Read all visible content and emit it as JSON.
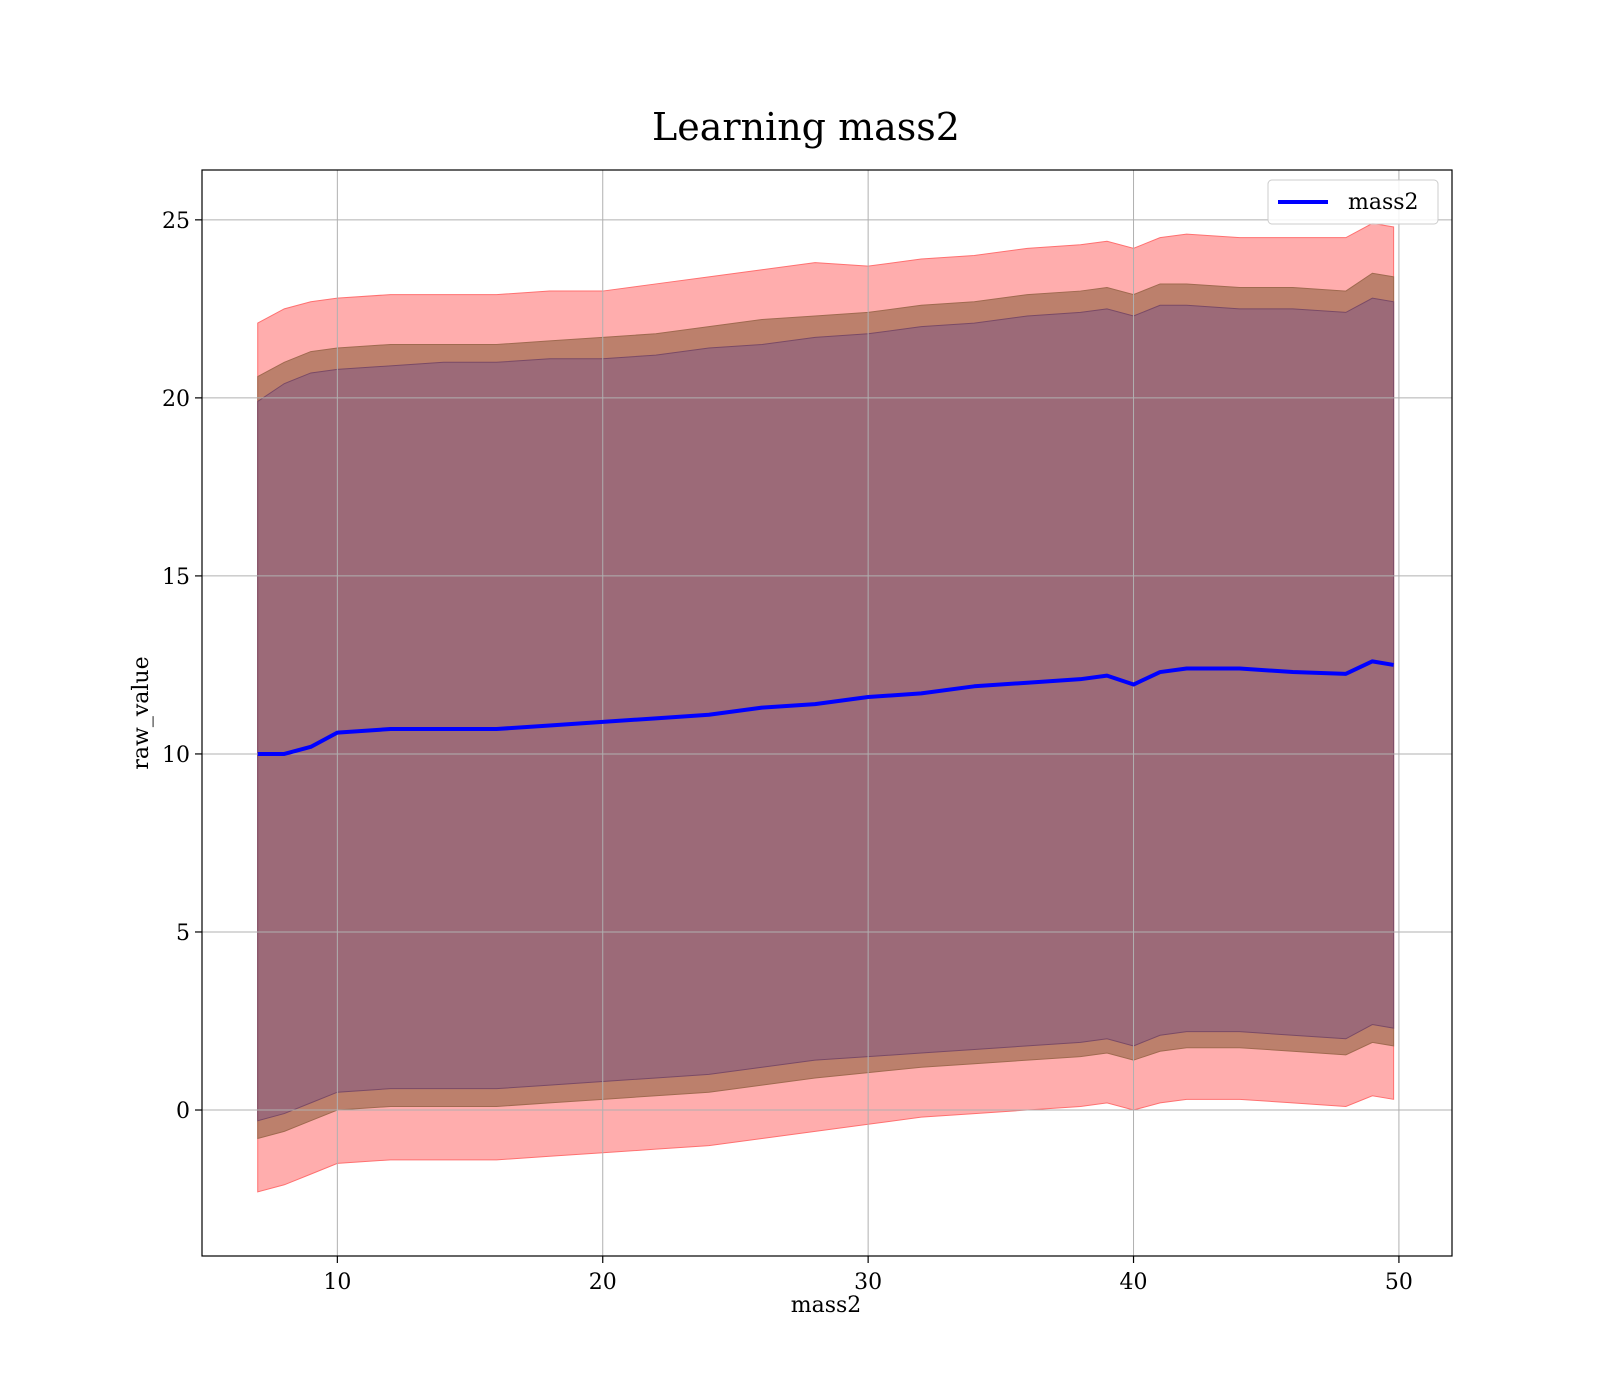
{
  "chart_data": {
    "type": "line",
    "title": "Learning mass2",
    "xlabel": "mass2",
    "ylabel": "raw_value",
    "xlim": [
      4.9,
      52.0
    ],
    "ylim": [
      -4.1,
      26.4
    ],
    "xticks": [
      10,
      20,
      30,
      40,
      50
    ],
    "yticks": [
      0,
      5,
      10,
      15,
      20,
      25
    ],
    "grid": true,
    "legend": "upper right",
    "colors": {
      "line": "#0000ff",
      "band_outer": "#ff9999",
      "band_middle": "#b07860",
      "band_inner": "#9c6a78",
      "grid": "#b0b0b0"
    },
    "x": [
      7,
      8,
      9,
      10,
      12,
      14,
      16,
      18,
      20,
      22,
      24,
      26,
      28,
      30,
      32,
      34,
      36,
      38,
      39,
      40,
      41,
      42,
      44,
      46,
      48,
      49,
      49.8
    ],
    "series": [
      {
        "name": "mass2",
        "values": [
          10.0,
          10.0,
          10.2,
          10.6,
          10.7,
          10.7,
          10.7,
          10.8,
          10.9,
          11.0,
          11.1,
          11.3,
          11.4,
          11.6,
          11.7,
          11.9,
          12.0,
          12.1,
          12.2,
          11.95,
          12.3,
          12.4,
          12.4,
          12.3,
          12.25,
          12.6,
          12.5
        ]
      }
    ],
    "bands": [
      {
        "level": "outer",
        "upper": [
          22.1,
          22.5,
          22.7,
          22.8,
          22.9,
          22.9,
          22.9,
          23.0,
          23.0,
          23.2,
          23.4,
          23.6,
          23.8,
          23.7,
          23.9,
          24.0,
          24.2,
          24.3,
          24.4,
          24.2,
          24.5,
          24.6,
          24.5,
          24.5,
          24.5,
          24.9,
          24.8
        ],
        "lower": [
          -2.3,
          -2.1,
          -1.8,
          -1.5,
          -1.4,
          -1.4,
          -1.4,
          -1.3,
          -1.2,
          -1.1,
          -1.0,
          -0.8,
          -0.6,
          -0.4,
          -0.2,
          -0.1,
          0.0,
          0.1,
          0.2,
          0.0,
          0.2,
          0.3,
          0.3,
          0.2,
          0.1,
          0.4,
          0.3
        ]
      },
      {
        "level": "middle",
        "upper": [
          20.6,
          21.0,
          21.3,
          21.4,
          21.5,
          21.5,
          21.5,
          21.6,
          21.7,
          21.8,
          22.0,
          22.2,
          22.3,
          22.4,
          22.6,
          22.7,
          22.9,
          23.0,
          23.1,
          22.9,
          23.2,
          23.2,
          23.1,
          23.1,
          23.0,
          23.5,
          23.4
        ]
      },
      {
        "level": "inner",
        "upper": [
          19.9,
          20.4,
          20.7,
          20.8,
          20.9,
          21.0,
          21.0,
          21.1,
          21.1,
          21.2,
          21.4,
          21.5,
          21.7,
          21.8,
          22.0,
          22.1,
          22.3,
          22.4,
          22.5,
          22.3,
          22.6,
          22.6,
          22.5,
          22.5,
          22.4,
          22.8,
          22.7
        ],
        "lower": [
          -0.3,
          -0.1,
          0.2,
          0.5,
          0.6,
          0.6,
          0.6,
          0.7,
          0.8,
          0.9,
          1.0,
          1.2,
          1.4,
          1.5,
          1.6,
          1.7,
          1.8,
          1.9,
          2.0,
          1.8,
          2.1,
          2.2,
          2.2,
          2.1,
          2.0,
          2.4,
          2.3
        ]
      }
    ]
  }
}
